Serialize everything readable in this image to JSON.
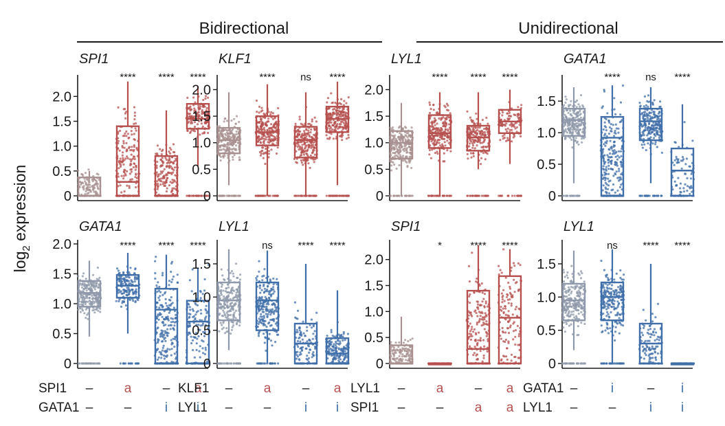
{
  "header": {
    "groups": [
      "Bidirectional",
      "Unidirectional"
    ]
  },
  "y_axis_label": "log2 expression",
  "colors": {
    "control": "#9e9e9e",
    "control_red": "#a89090",
    "control_blue": "#8e98aa",
    "red": "#b5504f",
    "blue": "#3f6ea8"
  },
  "chart_data": [
    {
      "type": "box",
      "panel": "bidir-spi1",
      "gene": "SPI1",
      "group": "Bidirectional",
      "ylim": [
        0,
        2.35
      ],
      "yticks": [
        "0",
        "0.5",
        "1.0",
        "1.5",
        "2.0"
      ],
      "ytick_values": [
        0,
        0.5,
        1.0,
        1.5,
        2.0
      ],
      "significance": [
        "",
        "****",
        "****",
        "****"
      ],
      "row_labels": [
        "SPI1",
        "GATA1"
      ],
      "conditions": [
        [
          "–",
          "a",
          "–",
          "a"
        ],
        [
          "–",
          "–",
          "i",
          "i"
        ]
      ],
      "box_colors": [
        "control_red",
        "red",
        "red",
        "red"
      ],
      "stats": [
        [
          0,
          0,
          0,
          0.37,
          0.5
        ],
        [
          0,
          0,
          0.28,
          1.4,
          2.3
        ],
        [
          0,
          0,
          0,
          0.8,
          1.72
        ],
        [
          0.6,
          1.35,
          1.55,
          1.85,
          2.2
        ]
      ],
      "density": [
        0.45,
        0.8,
        0.8,
        0.7
      ]
    },
    {
      "type": "box",
      "panel": "bidir-klf1",
      "gene": "KLF1",
      "group": "Bidirectional",
      "ylim": [
        0,
        2.2
      ],
      "yticks": [
        "0",
        "0.5",
        "1.0",
        "1.5",
        "2.0"
      ],
      "ytick_values": [
        0,
        0.5,
        1.0,
        1.5,
        2.0
      ],
      "significance": [
        "",
        "****",
        "ns",
        "****"
      ],
      "row_labels": [
        "KLF1",
        "LYL1"
      ],
      "conditions": [
        [
          "–",
          "a",
          "–",
          "a"
        ],
        [
          "–",
          "–",
          "i",
          "i"
        ]
      ],
      "box_colors": [
        "control_red",
        "red",
        "red",
        "red"
      ],
      "stats": [
        [
          0.2,
          0.8,
          1.05,
          1.28,
          1.95
        ],
        [
          0,
          0.95,
          1.2,
          1.5,
          2.1
        ],
        [
          0,
          0.72,
          1.05,
          1.3,
          1.95
        ],
        [
          0.2,
          1.2,
          1.45,
          1.68,
          2.15
        ]
      ],
      "density": [
        1,
        1,
        1,
        1
      ]
    },
    {
      "type": "box",
      "panel": "unidir-lyl1",
      "gene": "LYL1",
      "group": "Unidirectional",
      "ylim": [
        0,
        2.2
      ],
      "yticks": [
        "0",
        "0.5",
        "1.0",
        "1.5",
        "2.0"
      ],
      "ytick_values": [
        0,
        0.5,
        1.0,
        1.5,
        2.0
      ],
      "significance": [
        "",
        "****",
        "****",
        "****"
      ],
      "row_labels": [
        "LYL1",
        "SPI1"
      ],
      "conditions": [
        [
          "–",
          "a",
          "–",
          "a"
        ],
        [
          "–",
          "–",
          "a",
          "a"
        ]
      ],
      "box_colors": [
        "control_red",
        "red",
        "red",
        "red"
      ],
      "stats": [
        [
          0,
          0.7,
          1.0,
          1.22,
          1.75
        ],
        [
          0,
          0.9,
          1.18,
          1.52,
          1.95
        ],
        [
          0.5,
          0.85,
          1.1,
          1.32,
          1.95
        ],
        [
          0.6,
          1.18,
          1.4,
          1.62,
          2.0
        ]
      ],
      "density": [
        1,
        1,
        0.8,
        0.5
      ]
    },
    {
      "type": "box",
      "panel": "unidir-gata1",
      "gene": "GATA1",
      "group": "Unidirectional",
      "ylim": [
        0,
        1.85
      ],
      "yticks": [
        "0",
        "0.5",
        "1.0",
        "1.5"
      ],
      "ytick_values": [
        0,
        0.5,
        1.0,
        1.5
      ],
      "significance": [
        "",
        "****",
        "ns",
        "****"
      ],
      "row_labels": [
        "GATA1",
        "LYL1"
      ],
      "conditions": [
        [
          "–",
          "i",
          "–",
          "i"
        ],
        [
          "–",
          "–",
          "i",
          "i"
        ]
      ],
      "box_colors": [
        "control_blue",
        "blue",
        "blue",
        "blue"
      ],
      "stats": [
        [
          0.2,
          0.95,
          1.2,
          1.38,
          1.72
        ],
        [
          0,
          0,
          0.92,
          1.25,
          1.75
        ],
        [
          0.2,
          0.88,
          1.18,
          1.38,
          1.72
        ],
        [
          0,
          0,
          0.4,
          0.75,
          1.45
        ]
      ],
      "density": [
        1,
        1,
        1,
        0.35
      ]
    },
    {
      "type": "box",
      "panel": "bidir-gata1",
      "gene": "GATA1",
      "group": "Bidirectional",
      "ylim": [
        0,
        2.0
      ],
      "yticks": [
        "0",
        "0.5",
        "1.0",
        "1.5",
        "2.0"
      ],
      "ytick_values": [
        0,
        0.5,
        1.0,
        1.5,
        2.0
      ],
      "significance": [
        "",
        "****",
        "****",
        "****"
      ],
      "row_labels": [],
      "conditions": [],
      "box_colors": [
        "control_blue",
        "blue",
        "blue",
        "blue"
      ],
      "stats": [
        [
          0.45,
          0.95,
          1.18,
          1.38,
          1.72
        ],
        [
          0.5,
          1.1,
          1.3,
          1.48,
          1.85
        ],
        [
          0,
          0,
          0.9,
          1.25,
          1.82
        ],
        [
          0,
          0,
          0.7,
          1.05,
          1.6
        ]
      ],
      "density": [
        1,
        0.7,
        1,
        0.6
      ]
    },
    {
      "type": "box",
      "panel": "bidir-lyl1",
      "gene": "LYL1",
      "group": "Bidirectional",
      "ylim": [
        0,
        1.8
      ],
      "yticks": [
        "0",
        "0.5",
        "1.0",
        "1.5"
      ],
      "ytick_values": [
        0,
        0.5,
        1.0,
        1.5
      ],
      "significance": [
        "",
        "ns",
        "****",
        "****"
      ],
      "row_labels": [],
      "conditions": [],
      "box_colors": [
        "control_blue",
        "blue",
        "blue",
        "blue"
      ],
      "stats": [
        [
          0.2,
          0.65,
          0.95,
          1.22,
          1.72
        ],
        [
          0,
          0.5,
          0.95,
          1.22,
          1.7
        ],
        [
          0,
          0,
          0.3,
          0.6,
          1.5
        ],
        [
          0,
          0,
          0.15,
          0.38,
          1.1
        ]
      ],
      "density": [
        1,
        1,
        0.5,
        0.8
      ]
    },
    {
      "type": "box",
      "panel": "unidir-spi1",
      "gene": "SPI1",
      "group": "Unidirectional",
      "ylim": [
        0,
        2.3
      ],
      "yticks": [
        "0",
        "0.5",
        "1.0",
        "1.5",
        "2.0"
      ],
      "ytick_values": [
        0,
        0.5,
        1.0,
        1.5,
        2.0
      ],
      "significance": [
        "",
        "*",
        "****",
        "****"
      ],
      "row_labels": [],
      "conditions": [],
      "box_colors": [
        "control_red",
        "red",
        "red",
        "red"
      ],
      "stats": [
        [
          0,
          0,
          0,
          0.35,
          0.9
        ],
        [
          0,
          0,
          0,
          0,
          0
        ],
        [
          0,
          0,
          0.28,
          1.4,
          2.28
        ],
        [
          0,
          0,
          0.88,
          1.68,
          2.2
        ]
      ],
      "density": [
        0.6,
        0.35,
        0.8,
        0.6
      ]
    },
    {
      "type": "box",
      "panel": "unidir-lyl1-b",
      "gene": "LYL1",
      "group": "Unidirectional",
      "ylim": [
        0,
        1.8
      ],
      "yticks": [
        "0",
        "0.5",
        "1.0",
        "1.5"
      ],
      "ytick_values": [
        0,
        0.5,
        1.0,
        1.5
      ],
      "significance": [
        "",
        "ns",
        "****",
        "****"
      ],
      "row_labels": [],
      "conditions": [],
      "box_colors": [
        "control_blue",
        "blue",
        "blue",
        "blue"
      ],
      "stats": [
        [
          0.2,
          0.65,
          0.95,
          1.2,
          1.7
        ],
        [
          0,
          0.65,
          1.0,
          1.22,
          1.72
        ],
        [
          0,
          0,
          0.3,
          0.6,
          1.5
        ],
        [
          0,
          0,
          0,
          0,
          0
        ]
      ],
      "density": [
        1,
        1,
        0.5,
        0.3
      ]
    }
  ]
}
